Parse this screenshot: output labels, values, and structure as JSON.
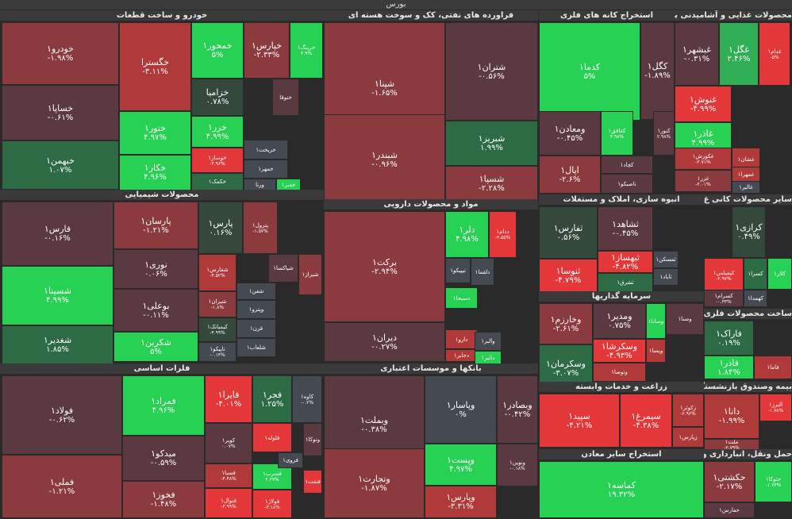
{
  "title": "بورس",
  "chart_data": {
    "type": "treemap",
    "colors": {
      "dark_green": "#2c6b44",
      "green": "#2fae55",
      "bright_green": "#27d153",
      "dark_gray_green": "#34493c",
      "neutral": "#454a52",
      "dark_red": "#5a3a40",
      "mid_red": "#8b3a3e",
      "red": "#b03a3a",
      "bright_red": "#e3373a"
    },
    "sectors": [
      {
        "name": "خودرو و ساخت قطعات",
        "items": [
          {
            "name": "خودرو۱",
            "change": "-۱.۹۸%"
          },
          {
            "name": "خساپا۱",
            "change": "-۰.۶۱%"
          },
          {
            "name": "خبهمن۱",
            "change": "۱.۰۷%"
          },
          {
            "name": "خگسترا",
            "change": "-۳.۱۱%"
          },
          {
            "name": "ختور۱",
            "change": "۴.۹۷%"
          },
          {
            "name": "خکار۱",
            "change": "۴.۹۶%"
          },
          {
            "name": "خمحور۱",
            "change": "۵%"
          },
          {
            "name": "خپارس۱",
            "change": "-۲.۳۳%"
          },
          {
            "name": "خرینگ۱",
            "change": "۴.۹%"
          },
          {
            "name": "خزامیا",
            "change": "۰.۷۸%"
          },
          {
            "name": "ختوقا",
            "change": ""
          },
          {
            "name": "خزر۱",
            "change": "۴.۹۹%"
          },
          {
            "name": "خوساز۱",
            "change": "-۴.۹۶%"
          },
          {
            "name": "خکمک۱",
            "change": ""
          },
          {
            "name": "خریخت۱",
            "change": ""
          },
          {
            "name": "خمهر۱",
            "change": ""
          },
          {
            "name": "ورنا",
            "change": ""
          },
          {
            "name": "خفنر۱",
            "change": ""
          }
        ]
      },
      {
        "name": "فراورده های نفتی، کک و سوخت هسته ای",
        "items": [
          {
            "name": "شپنا۱",
            "change": "-۱.۶۵%"
          },
          {
            "name": "شبندر۱",
            "change": "-۰.۹۶%"
          },
          {
            "name": "شتران۱",
            "change": "-۰.۵۶%"
          },
          {
            "name": "شبریز۱",
            "change": "۱.۹۹%"
          },
          {
            "name": "شسپا۱",
            "change": "-۲.۲۸%"
          }
        ]
      },
      {
        "name": "استخراج کانه های فلزی",
        "items": [
          {
            "name": "کدما۱",
            "change": "۵%"
          },
          {
            "name": "کگل۱",
            "change": "-۱.۸۹%"
          },
          {
            "name": "ومعادن۱",
            "change": "-۰.۴۵%"
          },
          {
            "name": "کفافق۱",
            "change": "۴.۹۸%"
          },
          {
            "name": "کنور۱",
            "change": "۲.۹۸%"
          },
          {
            "name": "اپال۱",
            "change": "-۲.۶%"
          },
          {
            "name": "کچاد۱",
            "change": ""
          },
          {
            "name": "تاصیکو۱",
            "change": ""
          }
        ]
      },
      {
        "name": "محصولات غذایی و آشامیدنی به",
        "items": [
          {
            "name": "غبشهر۱",
            "change": "-۰.۳۱%"
          },
          {
            "name": "غگل۱",
            "change": "۲.۴۶%"
          },
          {
            "name": "غدام۱",
            "change": "-۵%"
          },
          {
            "name": "غنوش۱",
            "change": "-۴.۹۹%"
          },
          {
            "name": "غاذر۱",
            "change": "۴.۹۹%"
          },
          {
            "name": "غکورش۱",
            "change": "-۲.۷۱%"
          },
          {
            "name": "غزر۱",
            "change": "-۲.۰۱%"
          },
          {
            "name": "غشان۱",
            "change": ""
          },
          {
            "name": "غمهرا۱",
            "change": ""
          },
          {
            "name": "غالبر۱",
            "change": ""
          }
        ]
      },
      {
        "name": "محصولات شیمیایی",
        "items": [
          {
            "name": "فارس۱",
            "change": "-۰.۱۶%"
          },
          {
            "name": "شسینا۱",
            "change": "۴.۹۹%"
          },
          {
            "name": "شغدیر۱",
            "change": "۱.۸۵%"
          },
          {
            "name": "پارسان۱",
            "change": "-۱.۲۱%"
          },
          {
            "name": "نوری۱",
            "change": "۰.۰۶%"
          },
          {
            "name": "بوعلی۱",
            "change": "-۰.۱۱%"
          },
          {
            "name": "شکربن۱",
            "change": "۵%"
          },
          {
            "name": "پارس۱",
            "change": "۰.۱۶%"
          },
          {
            "name": "پترول۱",
            "change": "-۱.۵۷%"
          },
          {
            "name": "شفارس۱",
            "change": "-۴.۵۲%"
          },
          {
            "name": "شپاکسا۱",
            "change": ""
          },
          {
            "name": "شیراز۱",
            "change": ""
          },
          {
            "name": "شیران۱",
            "change": "-۱.۸%"
          },
          {
            "name": "کیمیاتک۱",
            "change": "-۴.۹۹%"
          },
          {
            "name": "تاپیکو۱",
            "change": "-۰.۱۴%"
          },
          {
            "name": "شفن۱",
            "change": ""
          },
          {
            "name": "وپترو۱",
            "change": ""
          },
          {
            "name": "قرن۱",
            "change": ""
          },
          {
            "name": "شلعاب۱",
            "change": ""
          }
        ]
      },
      {
        "name": "مواد و محصولات دارویی",
        "items": [
          {
            "name": "برکت۱",
            "change": "-۲.۹۴%"
          },
          {
            "name": "دیران۱",
            "change": "-۰.۲۷%"
          },
          {
            "name": "دلر۱",
            "change": "۴.۹۸%"
          },
          {
            "name": "ددام۱",
            "change": "-۴.۵۵%"
          },
          {
            "name": "تیپیکو۱",
            "change": ""
          },
          {
            "name": "دلقما۱",
            "change": ""
          },
          {
            "name": "دسبحا۱",
            "change": ""
          },
          {
            "name": "دارو۱",
            "change": ""
          },
          {
            "name": "دجابر۱",
            "change": ""
          },
          {
            "name": "والبر۱",
            "change": ""
          },
          {
            "name": "دالبر۱",
            "change": ""
          }
        ]
      },
      {
        "name": "انبوه سازی، املاک و مستغلات",
        "items": [
          {
            "name": "ثفارس۱",
            "change": "۰.۵۶%"
          },
          {
            "name": "ثنوسا۱",
            "change": "-۴.۷۹%"
          },
          {
            "name": "ثشاهد۱",
            "change": "-۰.۴۵%"
          },
          {
            "name": "ثبهساز۱",
            "change": "-۴.۸۲%"
          },
          {
            "name": "ثشرق۱",
            "change": ""
          },
          {
            "name": "ثمسکن۱",
            "change": ""
          },
          {
            "name": "ثاباد۱",
            "change": ""
          }
        ]
      },
      {
        "name": "سایر محصولات کانی غ",
        "items": [
          {
            "name": "کرازی۱",
            "change": "۰.۴۹%"
          },
          {
            "name": "کیمیلس۱",
            "change": "-۲.۹۷%"
          },
          {
            "name": "کسرا۱",
            "change": ""
          },
          {
            "name": "کلار۱",
            "change": ""
          },
          {
            "name": "کسرام۱",
            "change": "-۰.۳۳%"
          },
          {
            "name": "کهمدا۱",
            "change": ""
          }
        ]
      },
      {
        "name": "فلزات اساسی",
        "items": [
          {
            "name": "فولاد۱",
            "change": "-۰.۶۲%"
          },
          {
            "name": "فملی۱",
            "change": "-۱.۲۱%"
          },
          {
            "name": "فمراد۱",
            "change": "۴.۹۶%"
          },
          {
            "name": "میدکو۱",
            "change": "-۰.۵۹%"
          },
          {
            "name": "فخوز۱",
            "change": "-۱.۴۸%"
          },
          {
            "name": "فایرا۱",
            "change": "-۴.۰۱%"
          },
          {
            "name": "فجر۱",
            "change": "۱.۲۵%"
          },
          {
            "name": "کاوه۱",
            "change": "-۰.۲%"
          },
          {
            "name": "کویر۱",
            "change": "۰.۰۷%"
          },
          {
            "name": "فسبا۱",
            "change": "-۴.۴۸%"
          },
          {
            "name": "فنوال۱",
            "change": "-۴.۹۹%"
          },
          {
            "name": "فلوله۱",
            "change": ""
          },
          {
            "name": "فسرب۱",
            "change": "۴.۳۷%"
          },
          {
            "name": "فولاژ۱",
            "change": "-۳.۱۸%"
          },
          {
            "name": "فروی۱",
            "change": ""
          },
          {
            "name": "وتوکا۱",
            "change": ""
          },
          {
            "name": "فنفت۱",
            "change": ""
          }
        ]
      },
      {
        "name": "بانکها و موسسات اعتباری",
        "items": [
          {
            "name": "وبملت۱",
            "change": "-۰.۳۸%"
          },
          {
            "name": "وتجارت۱",
            "change": "-۱.۸۷%"
          },
          {
            "name": "وپاسار۱",
            "change": "۰%"
          },
          {
            "name": "وبصادر۱",
            "change": "-۰.۴۲%"
          },
          {
            "name": "وپست۱",
            "change": "۴.۹۷%"
          },
          {
            "name": "وپارس۱",
            "change": "-۳.۳۱%"
          },
          {
            "name": "ونوین۱",
            "change": "-۰.۱۸%"
          }
        ]
      },
      {
        "name": "سرمایه گذاریها",
        "items": [
          {
            "name": "وخارزم۱",
            "change": "-۲.۶۱%"
          },
          {
            "name": "وسکرمان۱",
            "change": "-۳.۰۷%"
          },
          {
            "name": "ومدیر۱",
            "change": "۰.۷۵%"
          },
          {
            "name": "وسکرشا۱",
            "change": "-۴.۹۳%"
          },
          {
            "name": "وتوصا۱",
            "change": ""
          },
          {
            "name": "وسانا۱",
            "change": ""
          },
          {
            "name": "ویسا۱",
            "change": ""
          },
          {
            "name": "وصنا۱",
            "change": ""
          }
        ]
      },
      {
        "name": "ساخت محصولات فلزی",
        "items": [
          {
            "name": "فاراک۱",
            "change": "۰.۱۹%"
          },
          {
            "name": "فاذر۱",
            "change": "۱.۸۴%"
          },
          {
            "name": "فاما۱",
            "change": ""
          }
        ]
      },
      {
        "name": "زراعت و خدمات وابسته",
        "items": [
          {
            "name": "سپید۱",
            "change": "-۴.۲۱%"
          },
          {
            "name": "سیمرغ۱",
            "change": "-۴.۳۸%"
          },
          {
            "name": "زکوثر۱",
            "change": "-۲.۹۶%"
          },
          {
            "name": "زپارس۱",
            "change": ""
          }
        ]
      },
      {
        "name": "بیمه وصندوق بازنشستگی",
        "items": [
          {
            "name": "دانا۱",
            "change": "-۱.۹۹%"
          },
          {
            "name": "البرز۱",
            "change": "-۱.۷۸%"
          },
          {
            "name": "ملت۱",
            "change": "-۲.۷۹%"
          }
        ]
      },
      {
        "name": "استخراج سایر معادن",
        "items": [
          {
            "name": "کماسه۱",
            "change": "۱۹.۳۲%"
          }
        ]
      },
      {
        "name": "حمل ونقل، انبارداری و",
        "items": [
          {
            "name": "حکشتی۱",
            "change": "-۲.۱۷%"
          },
          {
            "name": "حتوکا۱",
            "change": "-۱.۷۳%"
          },
          {
            "name": "حفارس۱",
            "change": ""
          }
        ]
      }
    ]
  }
}
